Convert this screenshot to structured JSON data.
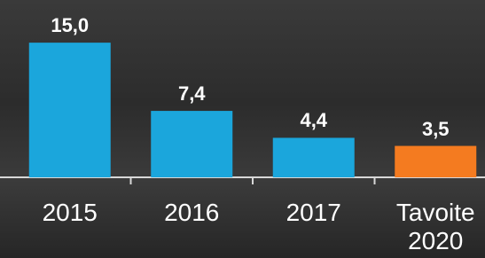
{
  "chart_data": {
    "type": "bar",
    "categories": [
      "2015",
      "2016",
      "2017",
      "Tavoite 2020"
    ],
    "values": [
      15.0,
      7.4,
      4.4,
      3.5
    ],
    "value_labels": [
      "15,0",
      "7,4",
      "4,4",
      "3,5"
    ],
    "colors": [
      "#1ba6dc",
      "#1ba6dc",
      "#1ba6dc",
      "#f47b20"
    ],
    "ylim": [
      0,
      16
    ]
  }
}
